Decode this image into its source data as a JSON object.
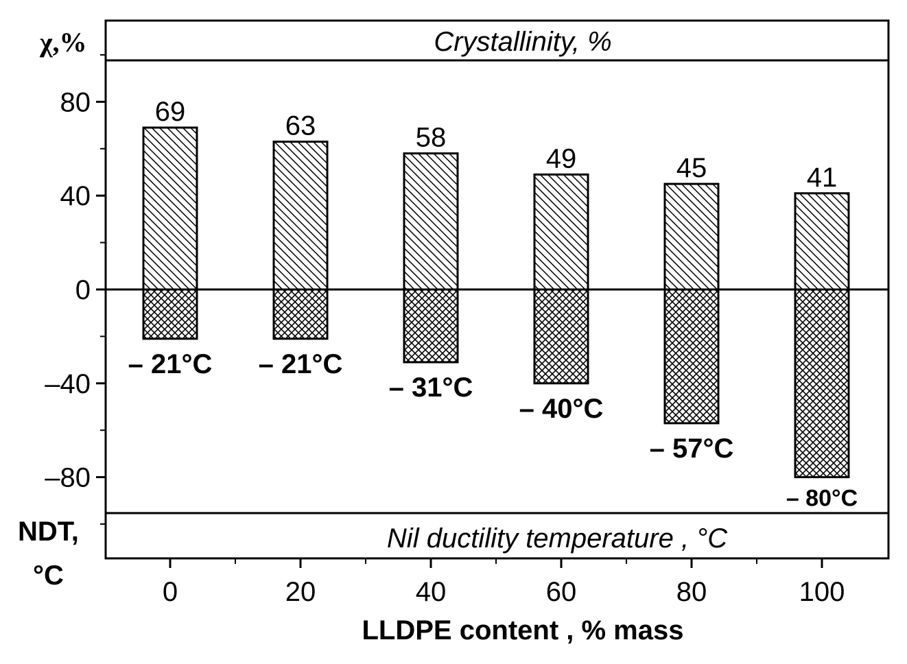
{
  "chart_data": {
    "type": "bar",
    "x": [
      0,
      20,
      40,
      60,
      80,
      100
    ],
    "xlim": [
      -10,
      110
    ],
    "ylim": [
      -115,
      115
    ],
    "yticks": [
      -80,
      -40,
      0,
      40,
      80
    ],
    "ytick_labels": [
      "–80",
      "–40",
      "0",
      "40",
      "80"
    ],
    "xticks": [
      0,
      20,
      40,
      60,
      80,
      100
    ],
    "xtick_labels": [
      "0",
      "20",
      "40",
      "60",
      "80",
      "100"
    ],
    "series": [
      {
        "name": "Crystallinity, %",
        "pattern": "diagonal-hatch",
        "values": [
          69,
          63,
          58,
          49,
          45,
          41
        ],
        "labels": [
          "69",
          "63",
          "58",
          "49",
          "45",
          "41"
        ]
      },
      {
        "name": "Nil ductility temperature , °C",
        "pattern": "cross-hatch",
        "values": [
          -21,
          -21,
          -31,
          -40,
          -57,
          -80
        ],
        "labels": [
          "– 21°C",
          "– 21°C",
          "– 31°C",
          "– 40°C",
          "– 57°C",
          "– 80°C"
        ]
      }
    ],
    "top_band_title": "Crystallinity, %",
    "bottom_band_title": "Nil ductility temperature , °C",
    "ylabel_top": "χ,%",
    "ylabel_bottom_line1": "NDT,",
    "ylabel_bottom_line2": "°C",
    "xlabel": "LLDPE content , % mass",
    "colors": {
      "line": "#000000",
      "background": "#ffffff"
    }
  }
}
